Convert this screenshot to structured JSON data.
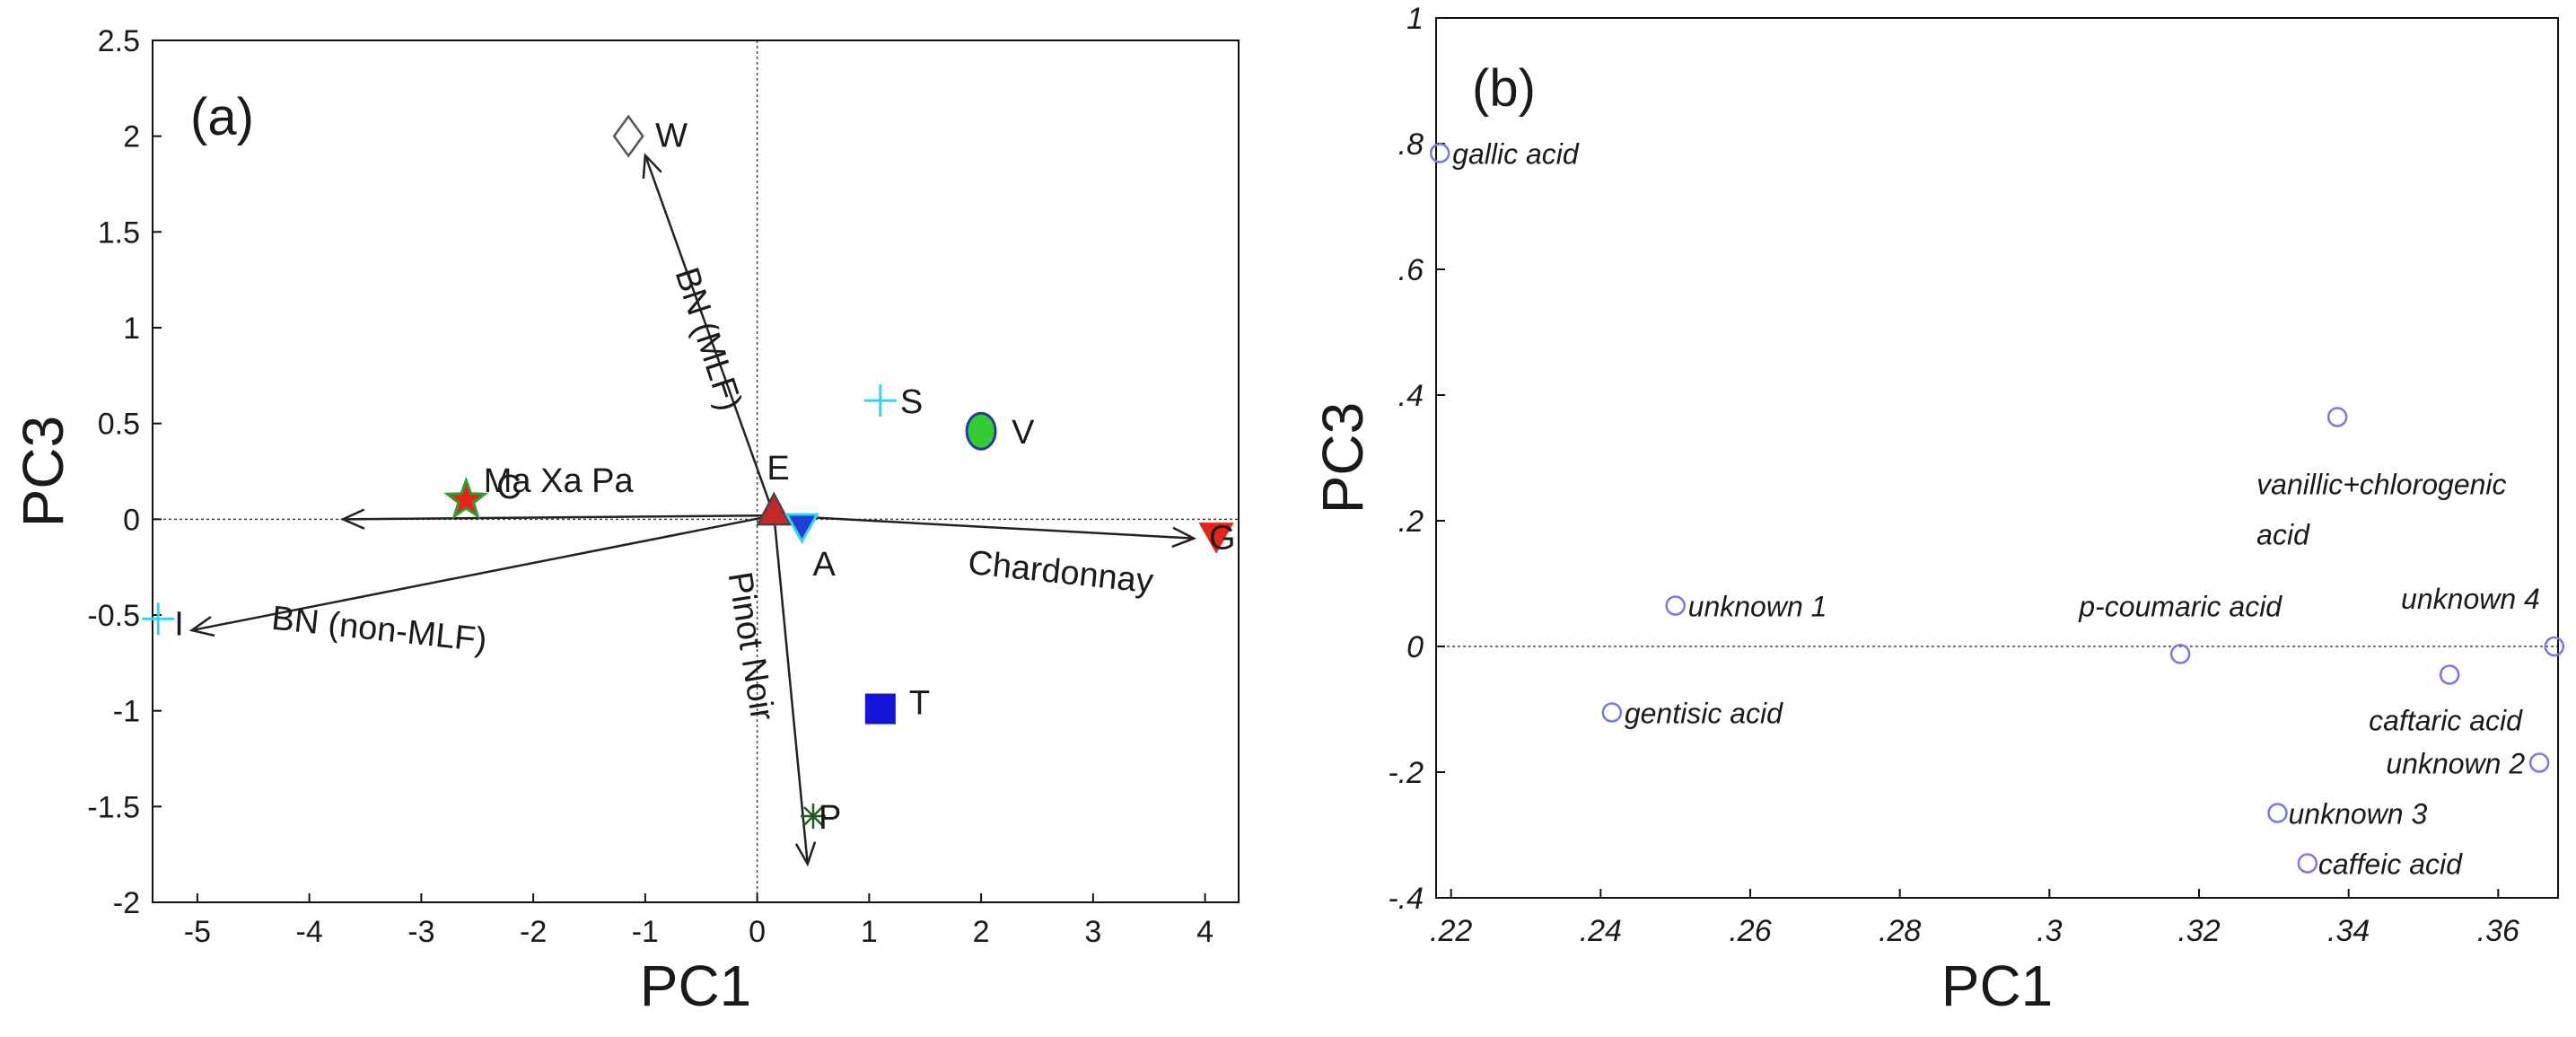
{
  "chart_data": [
    {
      "type": "scatter",
      "panel": "(a)",
      "xlabel": "PC1",
      "ylabel": "PC3",
      "xlim": [
        -5.4,
        4.3
      ],
      "ylim": [
        -2,
        2.5
      ],
      "xticks": [
        -5,
        -4,
        -3,
        -2,
        -1,
        0,
        1,
        2,
        3,
        4
      ],
      "yticks": [
        -2,
        -1.5,
        -1,
        -0.5,
        0,
        0.5,
        1,
        1.5,
        2,
        2.5
      ],
      "points": [
        {
          "label": "W",
          "x": -1.15,
          "y": 2.0,
          "marker": "diamond",
          "color": "#ffffff",
          "stroke": "#555555"
        },
        {
          "label": "S",
          "x": 1.1,
          "y": 0.62,
          "marker": "plus",
          "color": "#2fd8e8",
          "stroke": "#2fd8e8"
        },
        {
          "label": "V",
          "x": 2.0,
          "y": 0.46,
          "marker": "ellipse",
          "color": "#33cc33",
          "stroke": "#2a3aa0"
        },
        {
          "label": "C",
          "x": -2.6,
          "y": 0.1,
          "marker": "star",
          "color": "#e8231a",
          "stroke": "#2e9e2e"
        },
        {
          "label": "E",
          "x": 0.15,
          "y": 0.02,
          "marker": "triangle-up",
          "color": "#c62828",
          "stroke": "#444444"
        },
        {
          "label": "A",
          "x": 0.4,
          "y": -0.05,
          "marker": "triangle-down",
          "color": "#1f3fd6",
          "stroke": "#2fd8e8"
        },
        {
          "label": "G",
          "x": 4.1,
          "y": -0.1,
          "marker": "triangle-down",
          "color": "#e8231a",
          "stroke": "#e8231a"
        },
        {
          "label": "I",
          "x": -5.35,
          "y": -0.52,
          "marker": "plus",
          "color": "#2fd8e8",
          "stroke": "#2fd8e8"
        },
        {
          "label": "T",
          "x": 1.1,
          "y": -0.99,
          "marker": "square",
          "color": "#1515d8",
          "stroke": "#1515d8"
        },
        {
          "label": "P",
          "x": 0.5,
          "y": -1.55,
          "marker": "asterisk",
          "color": "#1e5e1e",
          "stroke": "#1e5e1e"
        }
      ],
      "vectors": [
        {
          "label": "BN (MLF)",
          "to": [
            -1.0,
            1.9
          ]
        },
        {
          "label": "Ma Xa Pa",
          "to": [
            -3.7,
            0.0
          ]
        },
        {
          "label": "BN (non-MLF)",
          "to": [
            -5.05,
            -0.58
          ]
        },
        {
          "label": "Chardonnay",
          "to": [
            3.9,
            -0.1
          ]
        },
        {
          "label": "Pinot Noir",
          "to": [
            0.45,
            -1.8
          ]
        }
      ]
    },
    {
      "type": "scatter",
      "panel": "(b)",
      "xlabel": "PC1",
      "ylabel": "PC3",
      "xlim": [
        0.218,
        0.368
      ],
      "ylim": [
        -0.4,
        1
      ],
      "xticks": [
        0.22,
        0.24,
        0.26,
        0.28,
        0.3,
        0.32,
        0.34,
        0.36
      ],
      "yticks": [
        -0.4,
        -0.2,
        0,
        0.2,
        0.4,
        0.6,
        0.8,
        1
      ],
      "points": [
        {
          "label": "gallic acid",
          "x": 0.2185,
          "y": 0.785
        },
        {
          "label": "vanillic+chlorogenic acid",
          "x": 0.3385,
          "y": 0.365
        },
        {
          "label": "unknown 1",
          "x": 0.25,
          "y": 0.065
        },
        {
          "label": "p-coumaric acid",
          "x": 0.3175,
          "y": -0.012
        },
        {
          "label": "unknown 4",
          "x": 0.3675,
          "y": 0.0
        },
        {
          "label": "caftaric acid",
          "x": 0.3535,
          "y": -0.045
        },
        {
          "label": "gentisic acid",
          "x": 0.2415,
          "y": -0.105
        },
        {
          "label": "unknown 2",
          "x": 0.3655,
          "y": -0.185
        },
        {
          "label": "unknown 3",
          "x": 0.3305,
          "y": -0.265
        },
        {
          "label": "caffeic acid",
          "x": 0.3345,
          "y": -0.345
        }
      ]
    }
  ]
}
